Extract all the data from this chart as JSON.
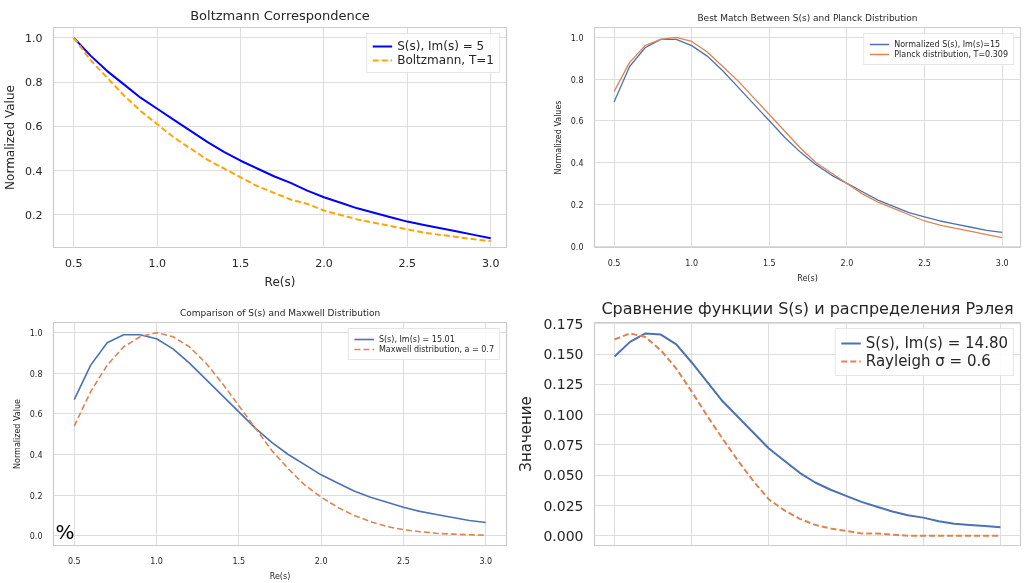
{
  "chart_data": [
    {
      "type": "line",
      "title": "Boltzmann Correspondence",
      "xlabel": "Re(s)",
      "ylabel": "Normalized Value",
      "xlim": [
        0.378,
        3.095
      ],
      "ylim": [
        0.053,
        1.047
      ],
      "xticks": [
        {
          "value": 0.5,
          "label": "0.5"
        },
        {
          "value": 1,
          "label": "1.0"
        },
        {
          "value": 1.5,
          "label": "1.5"
        },
        {
          "value": 2,
          "label": "2.0"
        },
        {
          "value": 2.5,
          "label": "2.5"
        },
        {
          "value": 3,
          "label": "3.0"
        }
      ],
      "yticks": [
        0.2,
        0.4,
        0.6,
        0.8,
        {
          "value": 1,
          "label": "1.0"
        }
      ],
      "grid": true,
      "legend": "top right",
      "x": [
        0.5,
        0.6,
        0.7,
        0.8,
        0.9,
        1.0,
        1.1,
        1.2,
        1.3,
        1.4,
        1.5,
        1.6,
        1.7,
        1.8,
        1.9,
        2.0,
        2.1,
        2.2,
        2.3,
        2.4,
        2.5,
        2.6,
        2.7,
        2.8,
        2.9,
        3.0
      ],
      "series": [
        {
          "name": "S(s), Im(s) = 5",
          "color": "#0000ff",
          "line_style": "solid",
          "values": [
            1.0,
            0.92,
            0.85,
            0.79,
            0.73,
            0.68,
            0.63,
            0.58,
            0.53,
            0.485,
            0.445,
            0.41,
            0.375,
            0.345,
            0.31,
            0.28,
            0.255,
            0.23,
            0.21,
            0.19,
            0.17,
            0.155,
            0.14,
            0.125,
            0.11,
            0.095
          ]
        },
        {
          "name": "Boltzmann, T=1",
          "color": "#ffa500",
          "line_style": "dashed",
          "values": [
            1.0,
            0.9,
            0.82,
            0.74,
            0.67,
            0.61,
            0.55,
            0.5,
            0.45,
            0.41,
            0.37,
            0.33,
            0.3,
            0.27,
            0.25,
            0.22,
            0.2,
            0.18,
            0.165,
            0.15,
            0.135,
            0.12,
            0.11,
            0.1,
            0.09,
            0.082
          ]
        }
      ]
    },
    {
      "type": "line",
      "title": "Best Match Between S(s) and Planck Distribution",
      "xlabel": "Re(s)",
      "ylabel": "Normalized Values",
      "xlim": [
        0.374,
        3.118
      ],
      "ylim": [
        -0.007,
        1.047
      ],
      "xticks": [
        {
          "value": 0.5,
          "label": "0.5"
        },
        {
          "value": 1,
          "label": "1.0"
        },
        {
          "value": 1.5,
          "label": "1.5"
        },
        {
          "value": 2,
          "label": "2.0"
        },
        {
          "value": 2.5,
          "label": "2.5"
        },
        {
          "value": 3,
          "label": "3.0"
        }
      ],
      "yticks": [
        {
          "value": 0,
          "label": "0.0"
        },
        0.2,
        0.4,
        0.6,
        0.8,
        {
          "value": 1,
          "label": "1.0"
        }
      ],
      "grid": true,
      "legend": "top right",
      "x": [
        0.5,
        0.6,
        0.7,
        0.8,
        0.9,
        1.0,
        1.1,
        1.2,
        1.3,
        1.4,
        1.5,
        1.6,
        1.7,
        1.8,
        1.9,
        2.0,
        2.1,
        2.2,
        2.3,
        2.4,
        2.5,
        2.6,
        2.7,
        2.8,
        2.9,
        3.0
      ],
      "series": [
        {
          "name": "Normalized S(s), Im(s)=15",
          "color": "#4c72b0",
          "line_style": "solid",
          "values": [
            0.69,
            0.86,
            0.95,
            0.99,
            0.99,
            0.96,
            0.91,
            0.84,
            0.76,
            0.68,
            0.6,
            0.52,
            0.45,
            0.39,
            0.34,
            0.3,
            0.26,
            0.22,
            0.19,
            0.16,
            0.14,
            0.12,
            0.105,
            0.09,
            0.075,
            0.065
          ]
        },
        {
          "name": "Planck distribution, T=0.309",
          "color": "#dd8452",
          "line_style": "solid",
          "values": [
            0.74,
            0.88,
            0.96,
            0.99,
            1.0,
            0.98,
            0.93,
            0.86,
            0.79,
            0.71,
            0.63,
            0.55,
            0.47,
            0.4,
            0.35,
            0.3,
            0.25,
            0.21,
            0.18,
            0.15,
            0.12,
            0.1,
            0.085,
            0.07,
            0.055,
            0.04
          ]
        }
      ]
    },
    {
      "type": "line",
      "title": "Comparison of S(s) and Maxwell Distribution",
      "xlabel": "Re(s)",
      "ylabel": "Normalized Value",
      "xlim": [
        0.374,
        3.126
      ],
      "ylim": [
        -0.048,
        1.05
      ],
      "xticks": [
        {
          "value": 0.5,
          "label": "0.5"
        },
        {
          "value": 1,
          "label": "1.0"
        },
        {
          "value": 1.5,
          "label": "1.5"
        },
        {
          "value": 2,
          "label": "2.0"
        },
        {
          "value": 2.5,
          "label": "2.5"
        },
        {
          "value": 3,
          "label": "3.0"
        }
      ],
      "yticks": [
        {
          "value": 0,
          "label": "0.0"
        },
        0.2,
        0.4,
        0.6,
        0.8,
        {
          "value": 1,
          "label": "1.0"
        }
      ],
      "grid": true,
      "legend": "top right",
      "annotations": [
        "%"
      ],
      "x": [
        0.5,
        0.6,
        0.7,
        0.8,
        0.9,
        1.0,
        1.1,
        1.2,
        1.3,
        1.4,
        1.5,
        1.6,
        1.7,
        1.8,
        1.9,
        2.0,
        2.1,
        2.2,
        2.3,
        2.4,
        2.5,
        2.6,
        2.7,
        2.8,
        2.9,
        3.0
      ],
      "series": [
        {
          "name": "S(s), Im(s) = 15.01",
          "color": "#4c72b0",
          "line_style": "solid",
          "values": [
            0.67,
            0.84,
            0.95,
            0.99,
            0.99,
            0.97,
            0.92,
            0.85,
            0.77,
            0.69,
            0.61,
            0.53,
            0.46,
            0.4,
            0.35,
            0.3,
            0.26,
            0.22,
            0.19,
            0.165,
            0.14,
            0.12,
            0.105,
            0.09,
            0.075,
            0.065
          ]
        },
        {
          "name": "Maxwell distribution, a = 0.7",
          "color": "#dd8452",
          "line_style": "dashed",
          "values": [
            0.54,
            0.71,
            0.84,
            0.93,
            0.98,
            1.0,
            0.98,
            0.93,
            0.85,
            0.75,
            0.64,
            0.53,
            0.42,
            0.33,
            0.25,
            0.19,
            0.14,
            0.1,
            0.07,
            0.045,
            0.03,
            0.02,
            0.012,
            0.008,
            0.005,
            0.003
          ]
        }
      ]
    },
    {
      "type": "line",
      "title": "Сравнение функции S(s) и распределения Рэлея",
      "ylabel": "Значение",
      "ylim": [
        -0.008,
        0.176
      ],
      "yticks": [
        {
          "value": 0,
          "label": "0.000"
        },
        {
          "value": 0.025,
          "label": "0.025"
        },
        {
          "value": 0.05,
          "label": "0.050"
        },
        {
          "value": 0.075,
          "label": "0.075"
        },
        {
          "value": 0.1,
          "label": "0.100"
        },
        {
          "value": 0.125,
          "label": "0.125"
        },
        {
          "value": 0.15,
          "label": "0.150"
        },
        {
          "value": 0.175,
          "label": "0.175"
        }
      ],
      "grid": true,
      "legend": "top right",
      "tick_labels": "y",
      "categories": [
        null,
        null,
        null,
        null,
        null,
        null,
        null,
        null,
        null,
        null,
        null,
        null,
        null,
        null,
        null,
        null,
        null,
        null,
        null,
        null,
        null,
        null,
        null,
        null,
        null,
        null
      ],
      "series": [
        {
          "name": "S(s), Im(s) = 14.80",
          "color": "#4c72b0",
          "line_style": "solid",
          "values": [
            0.148,
            0.16,
            0.167,
            0.166,
            0.158,
            0.143,
            0.127,
            0.111,
            0.098,
            0.085,
            0.072,
            0.062,
            0.052,
            0.044,
            0.038,
            0.033,
            0.028,
            0.024,
            0.02,
            0.017,
            0.015,
            0.012,
            0.01,
            0.009,
            0.008,
            0.007
          ]
        },
        {
          "name": "Rayleigh σ = 0.6",
          "color": "#dd8452",
          "line_style": "dashed",
          "values": [
            0.162,
            0.167,
            0.164,
            0.153,
            0.138,
            0.119,
            0.099,
            0.08,
            0.062,
            0.045,
            0.03,
            0.021,
            0.014,
            0.009,
            0.006,
            0.004,
            0.002,
            0.002,
            0.001,
            0,
            0,
            0,
            0,
            0,
            0,
            0
          ]
        }
      ]
    }
  ]
}
